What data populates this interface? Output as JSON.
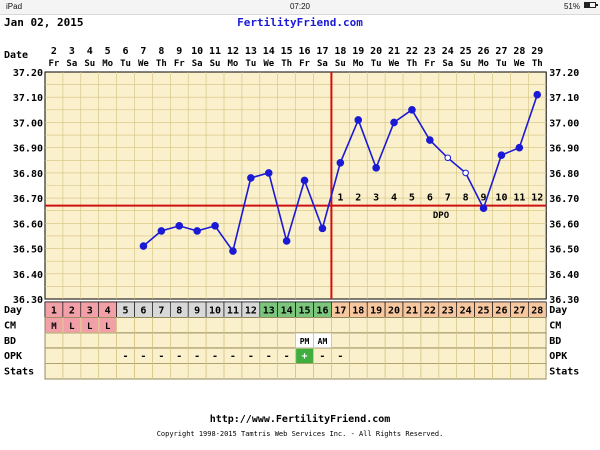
{
  "status_bar": {
    "device": "iPad",
    "time": "07:20",
    "battery": "51%"
  },
  "header": {
    "date": "Jan 02, 2015",
    "site": "FertilityFriend.com"
  },
  "footer": {
    "url": "http://www.FertilityFriend.com",
    "copyright": "Copyright 1998-2015 Tamtris Web Services Inc. - All Rights Reserved."
  },
  "row_labels": {
    "date": "Date",
    "day": "Day",
    "cm": "CM",
    "bd": "BD",
    "opk": "OPK",
    "stats": "Stats",
    "dpo": "DPO"
  },
  "colors": {
    "background": "#fbf0cc",
    "grid": "#d2c27e",
    "line": "#1a1ad6",
    "coverline": "#d01010",
    "menses": "#f2a0a8",
    "fertile": "#7cc57c",
    "luteal": "#f7c8a0",
    "day_plain": "#d8d8d8",
    "opk_positive": "#3fae3f"
  },
  "chart_data": {
    "type": "line",
    "ylim": [
      36.3,
      37.2
    ],
    "yticks": [
      "37.20",
      "37.10",
      "37.00",
      "36.90",
      "36.80",
      "36.70",
      "36.60",
      "36.50",
      "36.40",
      "36.30"
    ],
    "dates": [
      "2",
      "3",
      "4",
      "5",
      "6",
      "7",
      "8",
      "9",
      "10",
      "11",
      "12",
      "13",
      "14",
      "15",
      "16",
      "17",
      "18",
      "19",
      "20",
      "21",
      "22",
      "23",
      "24",
      "25",
      "26",
      "27",
      "28",
      "29"
    ],
    "weekdays": [
      "Fr",
      "Sa",
      "Su",
      "Mo",
      "Tu",
      "We",
      "Th",
      "Fr",
      "Sa",
      "Su",
      "Mo",
      "Tu",
      "We",
      "Th",
      "Fr",
      "Sa",
      "Su",
      "Mo",
      "Tu",
      "We",
      "Th",
      "Fr",
      "Sa",
      "Su",
      "Mo",
      "Tu",
      "We",
      "Th"
    ],
    "cycle_days": [
      "1",
      "2",
      "3",
      "4",
      "5",
      "6",
      "7",
      "8",
      "9",
      "10",
      "11",
      "12",
      "13",
      "14",
      "15",
      "16",
      "17",
      "18",
      "19",
      "20",
      "21",
      "22",
      "23",
      "24",
      "25",
      "26",
      "27",
      "28"
    ],
    "day_phase": [
      "menses",
      "menses",
      "menses",
      "menses",
      "plain",
      "plain",
      "plain",
      "plain",
      "plain",
      "plain",
      "plain",
      "plain",
      "fertile",
      "fertile",
      "fertile",
      "fertile",
      "luteal",
      "luteal",
      "luteal",
      "luteal",
      "luteal",
      "luteal",
      "luteal",
      "luteal",
      "luteal",
      "luteal",
      "luteal",
      "luteal"
    ],
    "temps": [
      null,
      null,
      null,
      null,
      null,
      36.51,
      36.57,
      36.59,
      36.57,
      36.59,
      36.49,
      36.78,
      36.8,
      36.53,
      36.77,
      36.58,
      36.84,
      37.01,
      36.82,
      37.0,
      37.05,
      36.93,
      36.86,
      36.8,
      36.66,
      36.87,
      36.9,
      37.11
    ],
    "temp_open": [
      false,
      false,
      false,
      false,
      false,
      false,
      false,
      false,
      false,
      false,
      false,
      false,
      false,
      false,
      false,
      false,
      false,
      false,
      false,
      false,
      false,
      false,
      true,
      true,
      false,
      false,
      false,
      false
    ],
    "coverline": 36.67,
    "ovulation_day": 16,
    "dpo_labels": [
      "1",
      "2",
      "3",
      "4",
      "5",
      "6",
      "7",
      "8",
      "9",
      "10",
      "11",
      "12"
    ],
    "cm": [
      "M",
      "L",
      "L",
      "L",
      "",
      "",
      "",
      "",
      "",
      "",
      "",
      "",
      "",
      "",
      "",
      "",
      "",
      "",
      "",
      "",
      "",
      "",
      "",
      "",
      "",
      "",
      "",
      ""
    ],
    "bd": [
      "",
      "",
      "",
      "",
      "",
      "",
      "",
      "",
      "",
      "",
      "",
      "",
      "",
      "",
      "PM",
      "AM",
      "",
      "",
      "",
      "",
      "",
      "",
      "",
      "",
      "",
      "",
      "",
      ""
    ],
    "opk": [
      "",
      "",
      "",
      "",
      "-",
      "-",
      "-",
      "-",
      "-",
      "-",
      "-",
      "-",
      "-",
      "-",
      "+",
      "-",
      "-",
      "",
      "",
      "",
      "",
      "",
      "",
      "",
      "",
      "",
      "",
      ""
    ]
  }
}
